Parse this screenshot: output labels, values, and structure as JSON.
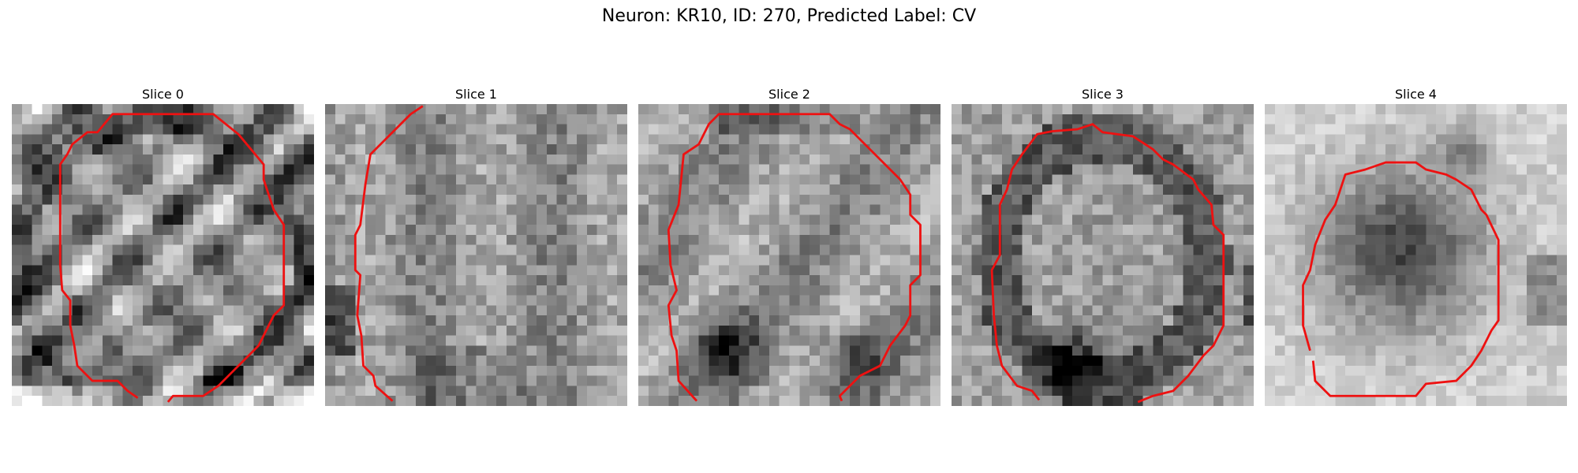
{
  "figure": {
    "title": "Neuron: KR10, ID: 270, Predicted Label: CV",
    "outline_color": "#ee1111",
    "colormap": "grayscale"
  },
  "panels": [
    {
      "label": "Slice 0",
      "tone": "mottled-dark-ring-bright-center"
    },
    {
      "label": "Slice 1",
      "tone": "uniform-medium-gray"
    },
    {
      "label": "Slice 2",
      "tone": "gray-with-dark-lower-blobs"
    },
    {
      "label": "Slice 3",
      "tone": "dark-ring-bright-center"
    },
    {
      "label": "Slice 4",
      "tone": "dark-center-bright-surround"
    }
  ]
}
